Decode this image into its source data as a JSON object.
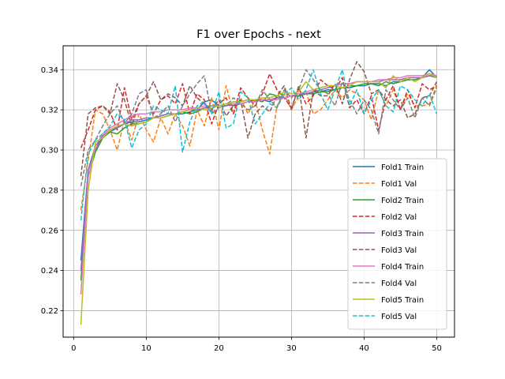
{
  "chart_data": {
    "type": "line",
    "title": "F1 over Epochs - next",
    "xlabel": "",
    "ylabel": "",
    "xlim": [
      -1.45,
      52.45
    ],
    "ylim": [
      0.2068,
      0.3519
    ],
    "xticks": [
      0,
      10,
      20,
      30,
      40,
      50
    ],
    "yticks": [
      0.22,
      0.24,
      0.26,
      0.28,
      0.3,
      0.32,
      0.34
    ],
    "ytick_labels": [
      "0.22",
      "0.24",
      "0.26",
      "0.28",
      "0.30",
      "0.32",
      "0.34"
    ],
    "grid": true,
    "legend_position": "lower right",
    "x": [
      1,
      2,
      3,
      4,
      5,
      6,
      7,
      8,
      9,
      10,
      11,
      12,
      13,
      14,
      15,
      16,
      17,
      18,
      19,
      20,
      21,
      22,
      23,
      24,
      25,
      26,
      27,
      28,
      29,
      30,
      31,
      32,
      33,
      34,
      35,
      36,
      37,
      38,
      39,
      40,
      41,
      42,
      43,
      44,
      45,
      46,
      47,
      48,
      49,
      50
    ],
    "series": [
      {
        "name": "Fold1 Train",
        "color": "#1f77b4",
        "dash": "solid",
        "values": [
          0.245,
          0.29,
          0.302,
          0.306,
          0.309,
          0.311,
          0.313,
          0.314,
          0.314,
          0.315,
          0.316,
          0.316,
          0.317,
          0.318,
          0.318,
          0.319,
          0.32,
          0.324,
          0.325,
          0.322,
          0.323,
          0.322,
          0.323,
          0.324,
          0.325,
          0.325,
          0.324,
          0.326,
          0.326,
          0.327,
          0.327,
          0.328,
          0.329,
          0.329,
          0.33,
          0.33,
          0.331,
          0.331,
          0.332,
          0.332,
          0.333,
          0.333,
          0.332,
          0.334,
          0.334,
          0.335,
          0.335,
          0.336,
          0.34,
          0.336
        ]
      },
      {
        "name": "Fold1 Val",
        "color": "#ff7f0e",
        "dash": "dashed",
        "values": [
          0.27,
          0.295,
          0.32,
          0.318,
          0.31,
          0.3,
          0.315,
          0.305,
          0.318,
          0.31,
          0.304,
          0.316,
          0.308,
          0.318,
          0.312,
          0.302,
          0.32,
          0.312,
          0.326,
          0.31,
          0.332,
          0.318,
          0.326,
          0.318,
          0.325,
          0.31,
          0.298,
          0.322,
          0.328,
          0.32,
          0.327,
          0.329,
          0.318,
          0.32,
          0.325,
          0.33,
          0.326,
          0.33,
          0.328,
          0.325,
          0.315,
          0.33,
          0.322,
          0.33,
          0.32,
          0.328,
          0.322,
          0.322,
          0.323,
          0.332
        ]
      },
      {
        "name": "Fold2 Train",
        "color": "#2ca02c",
        "dash": "solid",
        "values": [
          0.235,
          0.287,
          0.299,
          0.306,
          0.309,
          0.308,
          0.311,
          0.313,
          0.313,
          0.314,
          0.316,
          0.317,
          0.318,
          0.318,
          0.319,
          0.318,
          0.319,
          0.321,
          0.322,
          0.322,
          0.323,
          0.324,
          0.324,
          0.325,
          0.325,
          0.324,
          0.328,
          0.327,
          0.326,
          0.327,
          0.327,
          0.328,
          0.328,
          0.329,
          0.329,
          0.33,
          0.331,
          0.332,
          0.332,
          0.333,
          0.333,
          0.332,
          0.334,
          0.333,
          0.334,
          0.335,
          0.335,
          0.336,
          0.337,
          0.336
        ]
      },
      {
        "name": "Fold2 Val",
        "color": "#d62728",
        "dash": "dashed",
        "values": [
          0.301,
          0.31,
          0.32,
          0.322,
          0.319,
          0.31,
          0.331,
          0.315,
          0.323,
          0.327,
          0.318,
          0.325,
          0.327,
          0.323,
          0.333,
          0.318,
          0.328,
          0.325,
          0.313,
          0.323,
          0.326,
          0.318,
          0.331,
          0.326,
          0.322,
          0.328,
          0.338,
          0.33,
          0.326,
          0.321,
          0.331,
          0.323,
          0.327,
          0.335,
          0.332,
          0.33,
          0.336,
          0.321,
          0.325,
          0.318,
          0.327,
          0.31,
          0.325,
          0.332,
          0.32,
          0.33,
          0.321,
          0.333,
          0.33,
          0.332
        ]
      },
      {
        "name": "Fold3 Train",
        "color": "#9467bd",
        "dash": "solid",
        "values": [
          0.24,
          0.29,
          0.3,
          0.307,
          0.31,
          0.311,
          0.313,
          0.315,
          0.315,
          0.316,
          0.316,
          0.317,
          0.318,
          0.318,
          0.319,
          0.32,
          0.32,
          0.321,
          0.321,
          0.322,
          0.322,
          0.323,
          0.323,
          0.324,
          0.324,
          0.325,
          0.325,
          0.326,
          0.326,
          0.327,
          0.328,
          0.328,
          0.329,
          0.33,
          0.331,
          0.332,
          0.333,
          0.333,
          0.334,
          0.334,
          0.334,
          0.334,
          0.335,
          0.335,
          0.335,
          0.336,
          0.336,
          0.336,
          0.337,
          0.337
        ]
      },
      {
        "name": "Fold3 Val",
        "color": "#8c564b",
        "dash": "dashed",
        "values": [
          0.287,
          0.318,
          0.321,
          0.322,
          0.318,
          0.333,
          0.325,
          0.312,
          0.323,
          0.327,
          0.334,
          0.325,
          0.328,
          0.326,
          0.322,
          0.332,
          0.326,
          0.323,
          0.32,
          0.325,
          0.317,
          0.322,
          0.325,
          0.306,
          0.318,
          0.322,
          0.319,
          0.327,
          0.332,
          0.32,
          0.332,
          0.306,
          0.33,
          0.327,
          0.327,
          0.333,
          0.323,
          0.335,
          0.344,
          0.339,
          0.328,
          0.33,
          0.325,
          0.322,
          0.325,
          0.316,
          0.318,
          0.326,
          0.327,
          0.334
        ]
      },
      {
        "name": "Fold4 Train",
        "color": "#e377c2",
        "dash": "solid",
        "values": [
          0.228,
          0.286,
          0.302,
          0.308,
          0.311,
          0.313,
          0.315,
          0.317,
          0.318,
          0.318,
          0.319,
          0.319,
          0.32,
          0.32,
          0.32,
          0.321,
          0.321,
          0.322,
          0.322,
          0.322,
          0.323,
          0.323,
          0.323,
          0.324,
          0.324,
          0.325,
          0.325,
          0.325,
          0.326,
          0.327,
          0.328,
          0.329,
          0.33,
          0.331,
          0.332,
          0.332,
          0.333,
          0.333,
          0.334,
          0.334,
          0.334,
          0.335,
          0.335,
          0.336,
          0.336,
          0.337,
          0.337,
          0.337,
          0.338,
          0.337
        ]
      },
      {
        "name": "Fold4 Val",
        "color": "#7f7f7f",
        "dash": "dashed",
        "values": [
          0.282,
          0.3,
          0.305,
          0.312,
          0.318,
          0.322,
          0.313,
          0.318,
          0.328,
          0.33,
          0.316,
          0.318,
          0.322,
          0.314,
          0.322,
          0.328,
          0.333,
          0.337,
          0.318,
          0.321,
          0.322,
          0.326,
          0.323,
          0.32,
          0.322,
          0.33,
          0.325,
          0.321,
          0.33,
          0.326,
          0.33,
          0.34,
          0.335,
          0.33,
          0.328,
          0.322,
          0.334,
          0.325,
          0.318,
          0.325,
          0.32,
          0.308,
          0.33,
          0.325,
          0.32,
          0.326,
          0.316,
          0.326,
          0.322,
          0.331
        ]
      },
      {
        "name": "Fold5 Train",
        "color": "#bcbd22",
        "dash": "solid",
        "values": [
          0.213,
          0.28,
          0.304,
          0.306,
          0.31,
          0.312,
          0.313,
          0.312,
          0.313,
          0.314,
          0.316,
          0.316,
          0.317,
          0.318,
          0.319,
          0.32,
          0.321,
          0.32,
          0.321,
          0.322,
          0.323,
          0.324,
          0.324,
          0.325,
          0.325,
          0.326,
          0.326,
          0.327,
          0.329,
          0.328,
          0.329,
          0.334,
          0.33,
          0.331,
          0.332,
          0.332,
          0.331,
          0.332,
          0.334,
          0.334,
          0.334,
          0.334,
          0.331,
          0.337,
          0.334,
          0.336,
          0.334,
          0.336,
          0.338,
          0.336
        ]
      },
      {
        "name": "Fold5 Val",
        "color": "#17becf",
        "dash": "dashed",
        "values": [
          0.265,
          0.298,
          0.305,
          0.308,
          0.312,
          0.318,
          0.315,
          0.301,
          0.31,
          0.313,
          0.322,
          0.32,
          0.318,
          0.332,
          0.299,
          0.314,
          0.322,
          0.324,
          0.318,
          0.329,
          0.311,
          0.313,
          0.329,
          0.326,
          0.313,
          0.318,
          0.323,
          0.321,
          0.328,
          0.331,
          0.325,
          0.33,
          0.34,
          0.328,
          0.32,
          0.33,
          0.34,
          0.322,
          0.33,
          0.318,
          0.325,
          0.33,
          0.322,
          0.319,
          0.332,
          0.33,
          0.325,
          0.322,
          0.328,
          0.318
        ]
      }
    ]
  }
}
